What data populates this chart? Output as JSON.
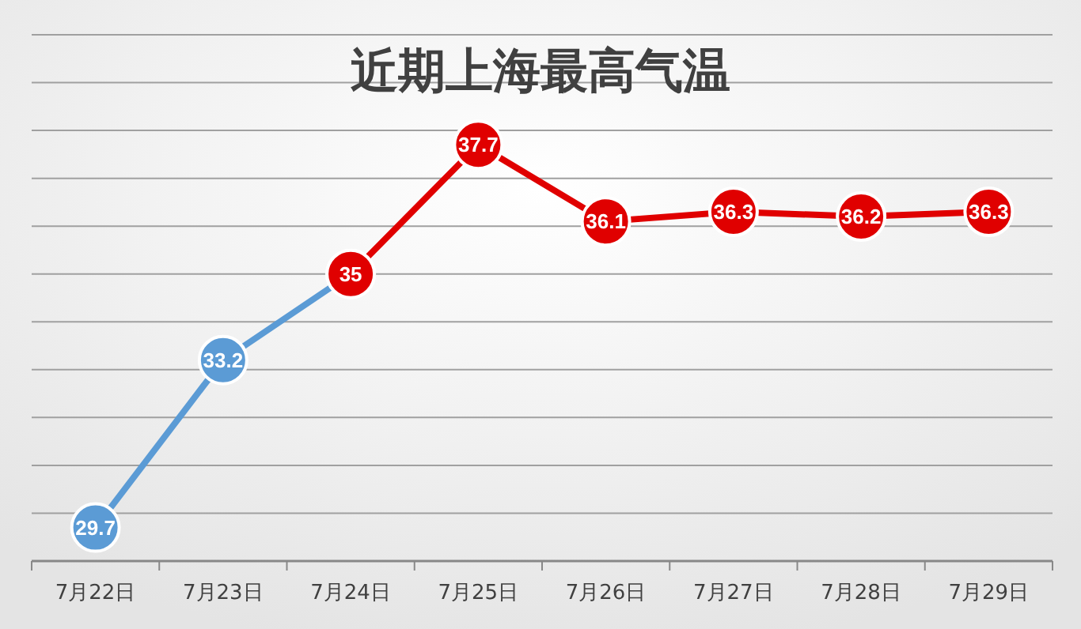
{
  "chart_data": {
    "type": "line",
    "title": "近期上海最高气温",
    "categories": [
      "7月22日",
      "7月23日",
      "7月24日",
      "7月25日",
      "7月26日",
      "7月27日",
      "7月28日",
      "7月29日"
    ],
    "series": [
      {
        "color": "#5b9bd5",
        "values": [
          29.7,
          33.2,
          35,
          null,
          null,
          null,
          null,
          null
        ],
        "value_labels": [
          "29.7",
          "33.2",
          null,
          null,
          null,
          null,
          null,
          null
        ]
      },
      {
        "color": "#e00000",
        "values": [
          null,
          null,
          35,
          37.7,
          36.1,
          36.3,
          36.2,
          36.3
        ],
        "value_labels": [
          null,
          null,
          "35",
          "37.7",
          "36.1",
          "36.3",
          "36.2",
          "36.3"
        ]
      }
    ],
    "ylim": [
      29,
      40
    ],
    "yticks": [
      {
        "value": 30,
        "label": null
      },
      {
        "value": 31,
        "label": null
      },
      {
        "value": 32,
        "label": null
      },
      {
        "value": 33,
        "label": null
      },
      {
        "value": 34,
        "label": null
      },
      {
        "value": 35,
        "label": null
      },
      {
        "value": 36,
        "label": null
      },
      {
        "value": 37,
        "label": null
      },
      {
        "value": 38,
        "label": null
      },
      {
        "value": 39,
        "label": null
      },
      {
        "value": 40,
        "label": null
      }
    ],
    "tick_labels": "x",
    "grid": "y",
    "marker": "circle",
    "line_style": "solid"
  }
}
